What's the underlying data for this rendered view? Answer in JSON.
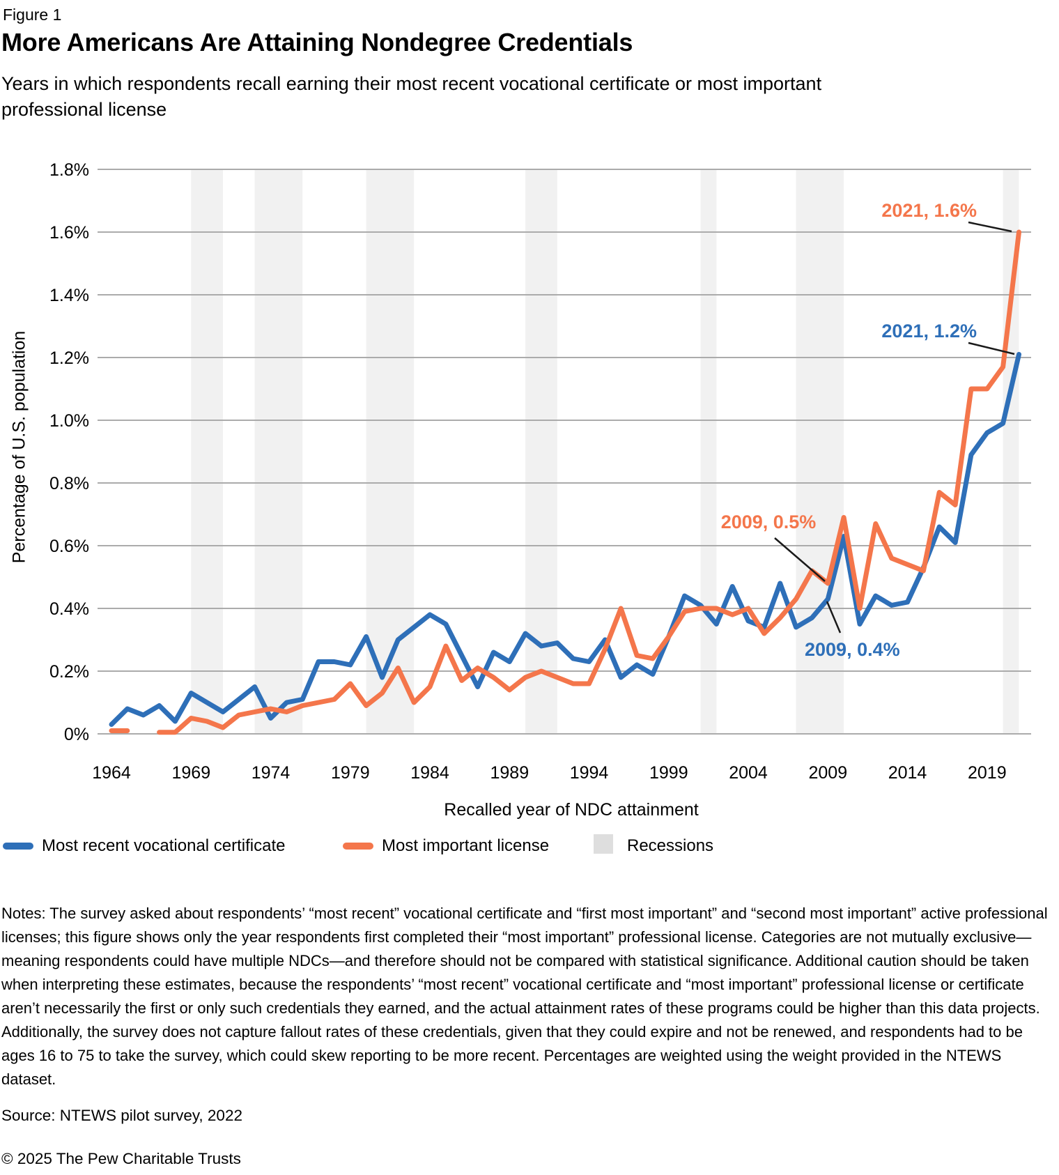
{
  "header": {
    "figure_label": "Figure 1",
    "title": "More Americans Are Attaining Nondegree Credentials",
    "subtitle": "Years in which respondents recall earning their most recent vocational certificate or most important professional license"
  },
  "colors": {
    "blue": "#2E6FB8",
    "orange": "#F4764B",
    "recession": "#F1F1F1",
    "legend_gray": "#DEDEDE",
    "gridline": "#ABABAB",
    "leader": "#1A1A1A",
    "text": "#000000"
  },
  "chart_data": {
    "type": "line",
    "title": "",
    "xlabel": "Recalled year of NDC attainment",
    "ylabel": "Percentage of U.S. population",
    "ylim": [
      0,
      1.8
    ],
    "grid": true,
    "legend_position": "bottom",
    "years": [
      1964,
      1965,
      1966,
      1967,
      1968,
      1969,
      1970,
      1971,
      1972,
      1973,
      1974,
      1975,
      1976,
      1977,
      1978,
      1979,
      1980,
      1981,
      1982,
      1983,
      1984,
      1985,
      1986,
      1987,
      1988,
      1989,
      1990,
      1991,
      1992,
      1993,
      1994,
      1995,
      1996,
      1997,
      1998,
      1999,
      2000,
      2001,
      2002,
      2003,
      2004,
      2005,
      2006,
      2007,
      2008,
      2009,
      2010,
      2011,
      2012,
      2013,
      2014,
      2015,
      2016,
      2017,
      2018,
      2019,
      2020,
      2021
    ],
    "x_ticks": [
      1964,
      1969,
      1974,
      1979,
      1984,
      1989,
      1994,
      1999,
      2004,
      2009,
      2014,
      2019
    ],
    "y_ticks": [
      {
        "value": 0.0,
        "label": "0%"
      },
      {
        "value": 0.2,
        "label": "0.2%"
      },
      {
        "value": 0.4,
        "label": "0.4%"
      },
      {
        "value": 0.6,
        "label": "0.6%"
      },
      {
        "value": 0.8,
        "label": "0.8%"
      },
      {
        "value": 1.0,
        "label": "1.0%"
      },
      {
        "value": 1.2,
        "label": "1.2%"
      },
      {
        "value": 1.4,
        "label": "1.4%"
      },
      {
        "value": 1.6,
        "label": "1.6%"
      },
      {
        "value": 1.8,
        "label": "1.8%"
      }
    ],
    "series": [
      {
        "id": "certificate",
        "name": "Most recent vocational certificate",
        "color": "blue",
        "values": [
          0.03,
          0.08,
          0.06,
          0.09,
          0.04,
          0.13,
          0.1,
          0.07,
          0.11,
          0.15,
          0.05,
          0.1,
          0.11,
          0.23,
          0.23,
          0.22,
          0.31,
          0.18,
          0.3,
          0.34,
          0.38,
          0.35,
          0.25,
          0.15,
          0.26,
          0.23,
          0.32,
          0.28,
          0.29,
          0.24,
          0.23,
          0.3,
          0.18,
          0.22,
          0.19,
          0.31,
          0.44,
          0.41,
          0.35,
          0.47,
          0.36,
          0.34,
          0.48,
          0.34,
          0.37,
          0.43,
          0.63,
          0.35,
          0.44,
          0.41,
          0.42,
          0.53,
          0.66,
          0.61,
          0.89,
          0.96,
          0.99,
          1.21
        ]
      },
      {
        "id": "license",
        "name": "Most important license",
        "color": "orange",
        "values": [
          0.01,
          0.01,
          null,
          0.005,
          0.005,
          0.05,
          0.04,
          0.02,
          0.06,
          0.07,
          0.08,
          0.07,
          0.09,
          0.1,
          0.11,
          0.16,
          0.09,
          0.13,
          0.21,
          0.1,
          0.15,
          0.28,
          0.17,
          0.21,
          0.18,
          0.14,
          0.18,
          0.2,
          0.18,
          0.16,
          0.16,
          0.27,
          0.4,
          0.25,
          0.24,
          0.31,
          0.39,
          0.4,
          0.4,
          0.38,
          0.4,
          0.32,
          0.37,
          0.43,
          0.52,
          0.48,
          0.69,
          0.4,
          0.67,
          0.56,
          0.54,
          0.52,
          0.77,
          0.73,
          1.1,
          1.1,
          1.17,
          1.6
        ]
      }
    ],
    "recessions": [
      [
        1969,
        1971
      ],
      [
        1973,
        1976
      ],
      [
        1980,
        1983
      ],
      [
        1990,
        1992
      ],
      [
        2001,
        2002
      ],
      [
        2007,
        2010
      ],
      [
        2020,
        2021
      ]
    ],
    "annotations": [
      {
        "id": "license-2021",
        "text": "2021, 1.6%",
        "color": "orange",
        "year": 2021,
        "value": 1.6
      },
      {
        "id": "certificate-2021",
        "text": "2021, 1.2%",
        "color": "blue",
        "year": 2021,
        "value": 1.2
      },
      {
        "id": "license-2009",
        "text": "2009, 0.5%",
        "color": "orange",
        "year": 2009,
        "value": 0.5
      },
      {
        "id": "certificate-2009",
        "text": "2009, 0.4%",
        "color": "blue",
        "year": 2009,
        "value": 0.4
      }
    ]
  },
  "legend": {
    "items": [
      {
        "label": "Most recent vocational certificate",
        "swatch": "line",
        "color": "blue"
      },
      {
        "label": "Most important license",
        "swatch": "line",
        "color": "orange"
      },
      {
        "label": "Recessions",
        "swatch": "box",
        "color": "legend_gray"
      }
    ]
  },
  "footer": {
    "notes": "Notes: The survey asked about respondents’ “most recent” vocational certificate and “first most important” and “second most important” active professional licenses; this figure shows only the year respondents first completed their “most important” professional license. Categories are not mutually exclusive—meaning respondents could have multiple NDCs—and therefore should not be compared with statistical significance. Additional caution should be taken when interpreting these estimates, because the respondents’ “most recent” vocational certificate and “most important” professional license or certificate aren’t necessarily the first or only such credentials they earned, and the actual attainment rates of these programs could be higher than this data projects. Additionally, the survey does not capture fallout rates of these credentials, given that they could expire and not be renewed, and respondents had to be ages 16 to 75 to take the survey, which could skew reporting to be more recent. Percentages are weighted using the weight provided in the NTEWS dataset.",
    "source": "Source: NTEWS pilot survey, 2022",
    "copyright": "© 2025 The Pew Charitable Trusts"
  }
}
